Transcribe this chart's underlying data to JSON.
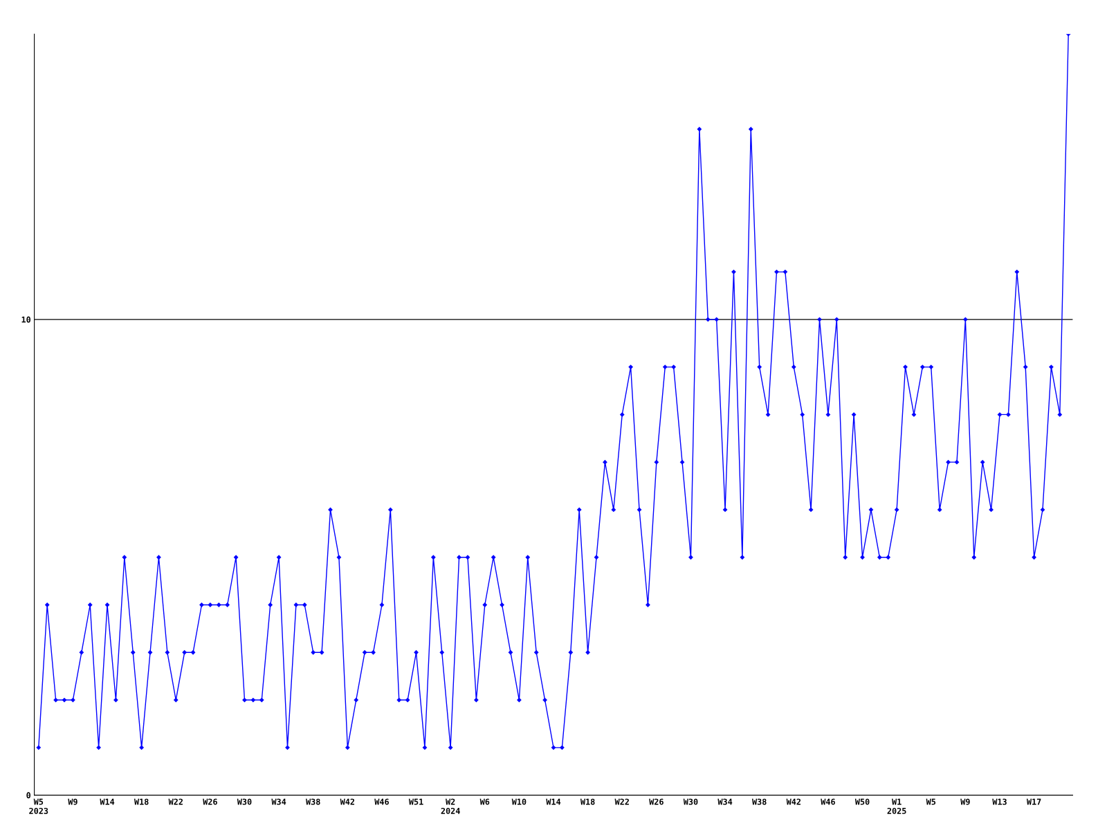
{
  "chart_data": {
    "type": "line",
    "categories": [
      "W5\n2023",
      null,
      null,
      null,
      "W9",
      null,
      null,
      null,
      "W14",
      null,
      null,
      null,
      "W18",
      null,
      null,
      null,
      "W22",
      null,
      null,
      null,
      "W26",
      null,
      null,
      null,
      "W30",
      null,
      null,
      null,
      "W34",
      null,
      null,
      null,
      "W38",
      null,
      null,
      null,
      "W42",
      null,
      null,
      null,
      "W46",
      null,
      null,
      null,
      "W51",
      null,
      null,
      null,
      "W2\n2024",
      null,
      null,
      null,
      "W6",
      null,
      null,
      null,
      "W10",
      null,
      null,
      null,
      "W14",
      null,
      null,
      null,
      "W18",
      null,
      null,
      null,
      "W22",
      null,
      null,
      null,
      "W26",
      null,
      null,
      null,
      "W30",
      null,
      null,
      null,
      "W34",
      null,
      null,
      null,
      "W38",
      null,
      null,
      null,
      "W42",
      null,
      null,
      null,
      "W46",
      null,
      null,
      null,
      "W50",
      null,
      null,
      null,
      "W1\n2025",
      null,
      null,
      null,
      "W5",
      null,
      null,
      null,
      "W9",
      null,
      null,
      null,
      "W13",
      null,
      null,
      null,
      "W17",
      null,
      null,
      null,
      null
    ],
    "series": [
      {
        "color": "#0000ff",
        "values": [
          1,
          4,
          2,
          2,
          2,
          3,
          4,
          1,
          4,
          2,
          5,
          3,
          1,
          3,
          5,
          3,
          2,
          3,
          3,
          4,
          4,
          4,
          4,
          5,
          2,
          2,
          2,
          4,
          5,
          1,
          4,
          4,
          3,
          3,
          6,
          5,
          1,
          2,
          3,
          3,
          4,
          6,
          2,
          2,
          3,
          1,
          5,
          3,
          1,
          5,
          5,
          2,
          4,
          5,
          4,
          3,
          2,
          5,
          3,
          2,
          1,
          1,
          3,
          6,
          3,
          5,
          7,
          6,
          8,
          9,
          6,
          4,
          7,
          9,
          9,
          7,
          5,
          14,
          10,
          10,
          6,
          11,
          5,
          14,
          9,
          8,
          11,
          11,
          9,
          8,
          6,
          10,
          8,
          10,
          5,
          8,
          5,
          6,
          5,
          5,
          6,
          9,
          8,
          9,
          9,
          6,
          7,
          7,
          10,
          5,
          7,
          6,
          8,
          8,
          11,
          9,
          5,
          6,
          9,
          8,
          16
        ]
      }
    ],
    "ylim": [
      0,
      16
    ],
    "yticks": [
      0,
      10
    ],
    "grid": "y",
    "marker": "diamond",
    "line_style": "solid"
  }
}
